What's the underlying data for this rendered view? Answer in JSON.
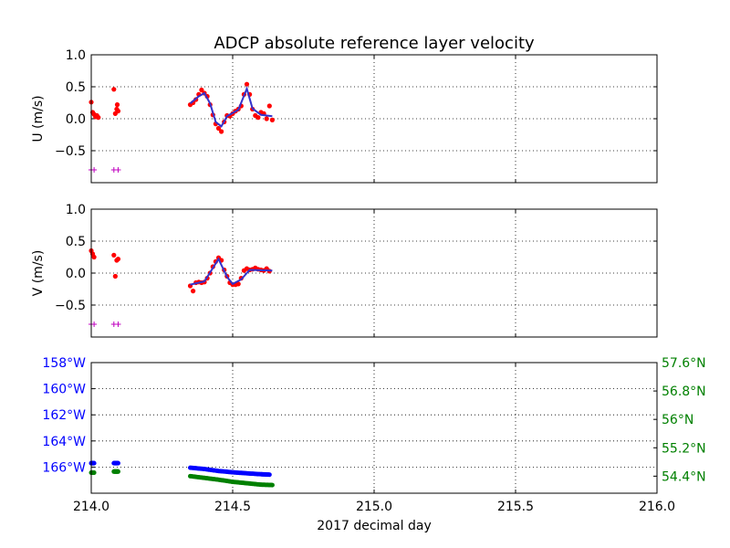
{
  "chart_data": {
    "type": "scatter",
    "title": "ADCP absolute reference layer velocity",
    "xlabel": "2017 decimal day",
    "xlim": [
      214.0,
      216.0
    ],
    "xticks": [
      "214.0",
      "214.5",
      "215.0",
      "215.5",
      "216.0"
    ],
    "grid": true,
    "colors": {
      "raw": "#ff0000",
      "smooth": "#3333cc",
      "flag": "#bf00bf",
      "lon": "#0000ff",
      "lat": "#008000"
    },
    "panels": [
      {
        "id": "u",
        "ylabel": "U (m/s)",
        "ylim": [
          -1.0,
          1.0
        ],
        "yticks": [
          "1.0",
          "0.5",
          "0.0",
          "−0.5"
        ],
        "raw": [
          [
            214.0,
            0.26
          ],
          [
            214.005,
            0.1
          ],
          [
            214.01,
            0.07
          ],
          [
            214.015,
            0.03
          ],
          [
            214.02,
            0.05
          ],
          [
            214.025,
            0.02
          ],
          [
            214.08,
            0.46
          ],
          [
            214.085,
            0.08
          ],
          [
            214.09,
            0.15
          ],
          [
            214.092,
            0.22
          ],
          [
            214.095,
            0.12
          ],
          [
            214.35,
            0.22
          ],
          [
            214.36,
            0.25
          ],
          [
            214.37,
            0.3
          ],
          [
            214.38,
            0.38
          ],
          [
            214.39,
            0.45
          ],
          [
            214.4,
            0.4
          ],
          [
            214.41,
            0.35
          ],
          [
            214.42,
            0.22
          ],
          [
            214.43,
            0.06
          ],
          [
            214.44,
            -0.08
          ],
          [
            214.45,
            -0.15
          ],
          [
            214.46,
            -0.2
          ],
          [
            214.47,
            -0.05
          ],
          [
            214.48,
            0.05
          ],
          [
            214.49,
            0.04
          ],
          [
            214.5,
            0.08
          ],
          [
            214.51,
            0.12
          ],
          [
            214.52,
            0.15
          ],
          [
            214.53,
            0.2
          ],
          [
            214.54,
            0.38
          ],
          [
            214.55,
            0.54
          ],
          [
            214.56,
            0.38
          ],
          [
            214.57,
            0.15
          ],
          [
            214.58,
            0.05
          ],
          [
            214.59,
            0.02
          ],
          [
            214.6,
            0.1
          ],
          [
            214.61,
            0.08
          ],
          [
            214.62,
            0.0
          ],
          [
            214.63,
            0.2
          ],
          [
            214.64,
            -0.02
          ]
        ],
        "smooth": [
          [
            214.35,
            0.24
          ],
          [
            214.38,
            0.35
          ],
          [
            214.4,
            0.4
          ],
          [
            214.42,
            0.24
          ],
          [
            214.44,
            -0.05
          ],
          [
            214.46,
            -0.12
          ],
          [
            214.48,
            0.04
          ],
          [
            214.52,
            0.14
          ],
          [
            214.55,
            0.47
          ],
          [
            214.57,
            0.16
          ],
          [
            214.6,
            0.06
          ],
          [
            214.64,
            0.04
          ]
        ],
        "flags": [
          [
            214.0,
            -0.8
          ],
          [
            214.01,
            -0.8
          ],
          [
            214.08,
            -0.8
          ],
          [
            214.095,
            -0.8
          ]
        ]
      },
      {
        "id": "v",
        "ylabel": "V (m/s)",
        "ylim": [
          -1.0,
          1.0
        ],
        "yticks": [
          "1.0",
          "0.5",
          "0.0",
          "−0.5"
        ],
        "raw": [
          [
            214.0,
            0.35
          ],
          [
            214.005,
            0.3
          ],
          [
            214.01,
            0.25
          ],
          [
            214.08,
            0.28
          ],
          [
            214.085,
            -0.05
          ],
          [
            214.09,
            0.2
          ],
          [
            214.095,
            0.22
          ],
          [
            214.35,
            -0.2
          ],
          [
            214.36,
            -0.28
          ],
          [
            214.37,
            -0.15
          ],
          [
            214.38,
            -0.14
          ],
          [
            214.39,
            -0.15
          ],
          [
            214.4,
            -0.14
          ],
          [
            214.41,
            -0.08
          ],
          [
            214.42,
            0.0
          ],
          [
            214.43,
            0.1
          ],
          [
            214.44,
            0.18
          ],
          [
            214.45,
            0.24
          ],
          [
            214.46,
            0.2
          ],
          [
            214.47,
            0.05
          ],
          [
            214.48,
            -0.05
          ],
          [
            214.49,
            -0.15
          ],
          [
            214.5,
            -0.18
          ],
          [
            214.51,
            -0.18
          ],
          [
            214.52,
            -0.17
          ],
          [
            214.53,
            -0.08
          ],
          [
            214.54,
            0.04
          ],
          [
            214.55,
            0.07
          ],
          [
            214.56,
            0.05
          ],
          [
            214.57,
            0.06
          ],
          [
            214.58,
            0.08
          ],
          [
            214.59,
            0.06
          ],
          [
            214.6,
            0.05
          ],
          [
            214.61,
            0.04
          ],
          [
            214.62,
            0.07
          ],
          [
            214.63,
            0.03
          ]
        ],
        "smooth": [
          [
            214.35,
            -0.18
          ],
          [
            214.4,
            -0.13
          ],
          [
            214.45,
            0.22
          ],
          [
            214.48,
            -0.06
          ],
          [
            214.5,
            -0.17
          ],
          [
            214.53,
            -0.1
          ],
          [
            214.56,
            0.05
          ],
          [
            214.64,
            0.04
          ]
        ],
        "flags": [
          [
            214.0,
            -0.8
          ],
          [
            214.01,
            -0.8
          ],
          [
            214.08,
            -0.8
          ],
          [
            214.095,
            -0.8
          ]
        ]
      }
    ],
    "position": {
      "left_axis": {
        "name": "longitude",
        "ylim": [
          -168,
          -158
        ],
        "ytick_values": [
          -158,
          -160,
          -162,
          -164,
          -166
        ],
        "yticks": [
          "158°W",
          "160°W",
          "162°W",
          "164°W",
          "166°W"
        ]
      },
      "right_axis": {
        "name": "latitude",
        "ylim": [
          53.92,
          57.6
        ],
        "ytick_values": [
          57.6,
          56.8,
          56.0,
          55.2,
          54.4
        ],
        "yticks": [
          "57.6°N",
          "56.8°N",
          "56°N",
          "55.2°N",
          "54.4°N"
        ]
      },
      "lon": [
        [
          214.0,
          -165.7
        ],
        [
          214.01,
          -165.7
        ],
        [
          214.08,
          -165.7
        ],
        [
          214.095,
          -165.7
        ],
        [
          214.35,
          -166.05
        ],
        [
          214.4,
          -166.15
        ],
        [
          214.45,
          -166.3
        ],
        [
          214.5,
          -166.4
        ],
        [
          214.55,
          -166.48
        ],
        [
          214.6,
          -166.55
        ],
        [
          214.63,
          -166.58
        ]
      ],
      "lat": [
        [
          214.0,
          54.5
        ],
        [
          214.01,
          54.5
        ],
        [
          214.08,
          54.53
        ],
        [
          214.095,
          54.53
        ],
        [
          214.35,
          54.4
        ],
        [
          214.4,
          54.35
        ],
        [
          214.45,
          54.3
        ],
        [
          214.5,
          54.24
        ],
        [
          214.55,
          54.2
        ],
        [
          214.6,
          54.16
        ],
        [
          214.64,
          54.15
        ]
      ]
    }
  }
}
